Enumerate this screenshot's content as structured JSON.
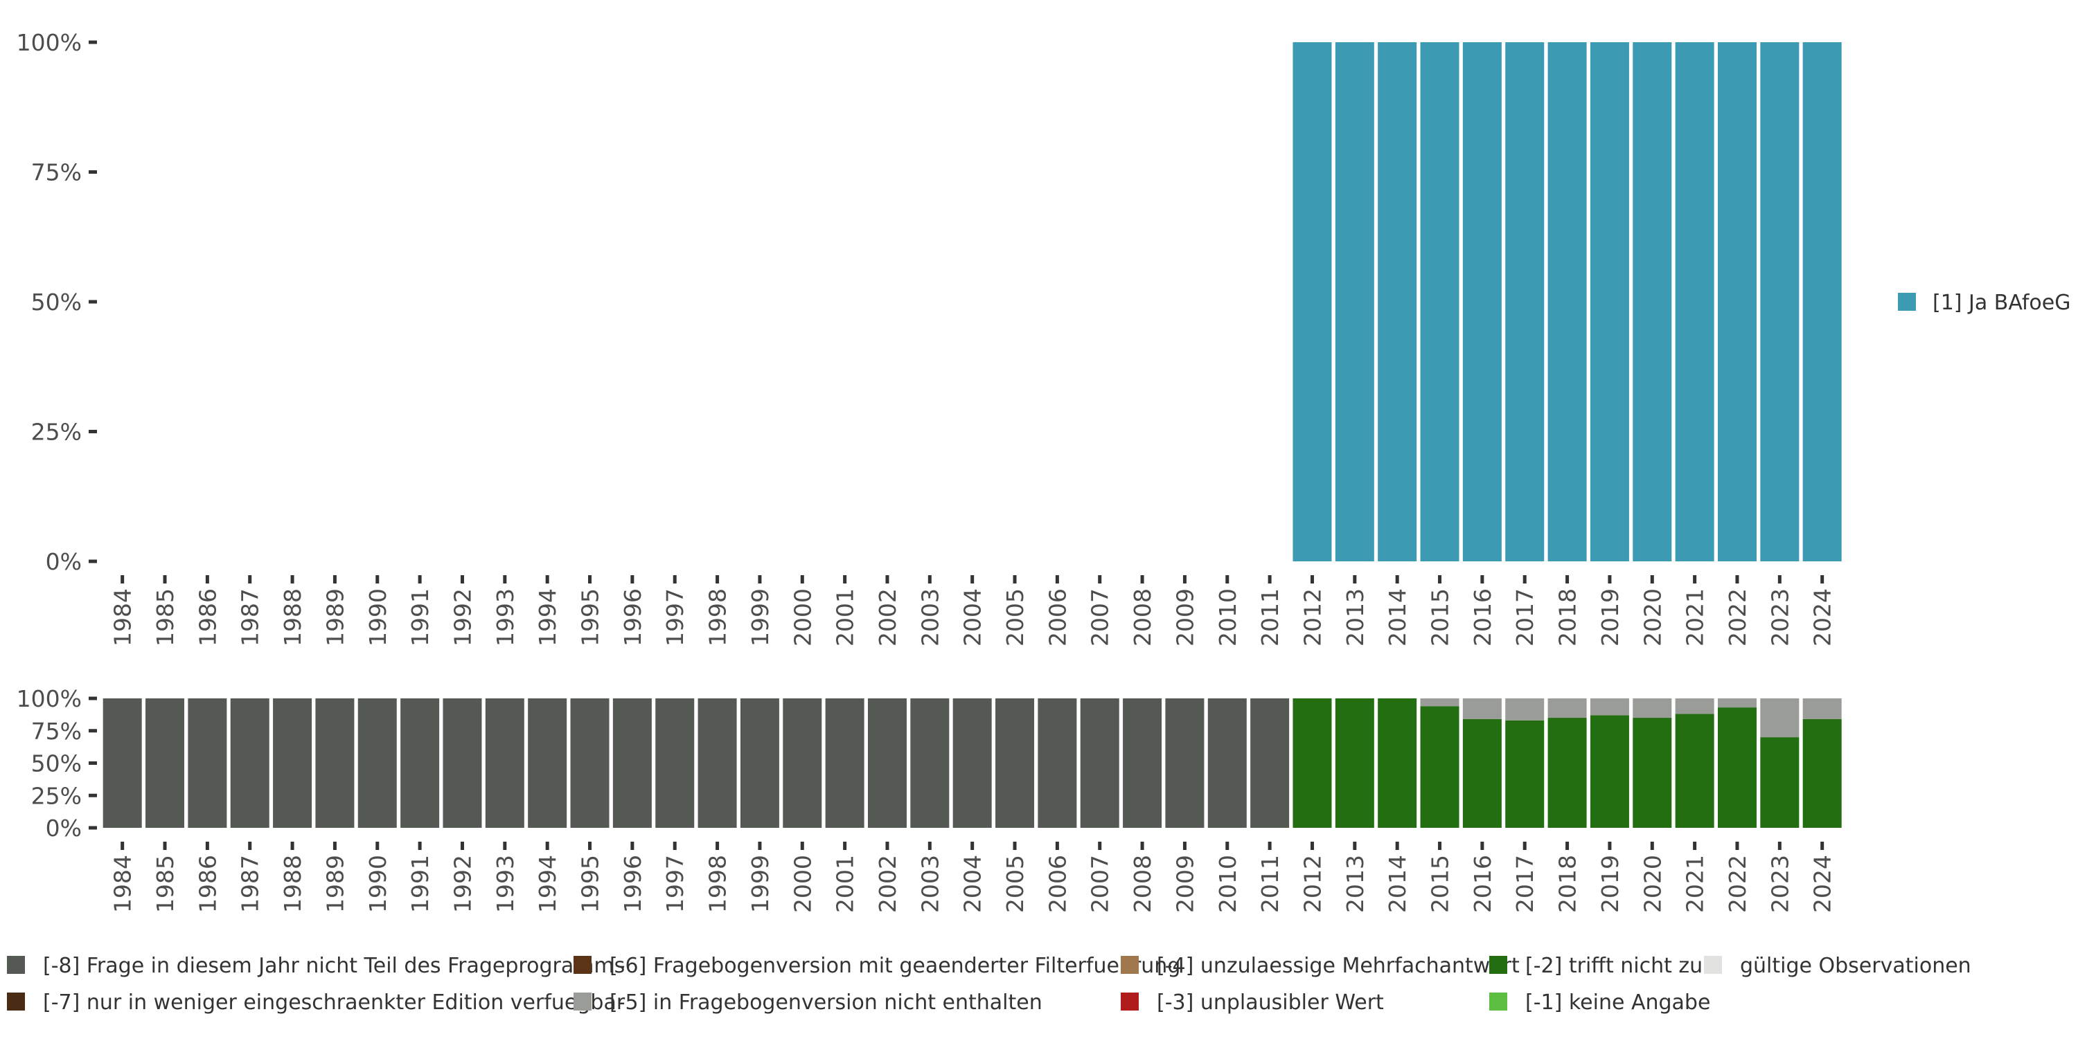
{
  "chart_data": [
    {
      "type": "bar",
      "stacked": true,
      "categories": [
        "1984",
        "1985",
        "1986",
        "1987",
        "1988",
        "1989",
        "1990",
        "1991",
        "1992",
        "1993",
        "1994",
        "1995",
        "1996",
        "1997",
        "1998",
        "1999",
        "2000",
        "2001",
        "2002",
        "2003",
        "2004",
        "2005",
        "2006",
        "2007",
        "2008",
        "2009",
        "2010",
        "2011",
        "2012",
        "2013",
        "2014",
        "2015",
        "2016",
        "2017",
        "2018",
        "2019",
        "2020",
        "2021",
        "2022",
        "2023",
        "2024"
      ],
      "ylim": [
        0,
        1
      ],
      "yticks": [
        0,
        0.25,
        0.5,
        0.75,
        1
      ],
      "ytick_labels": [
        "0%",
        "25%",
        "50%",
        "75%",
        "100%"
      ],
      "grid": false,
      "legend_position": "right",
      "series": [
        {
          "name": "[1] Ja BAfoeG",
          "color": "#3c9ab2",
          "values": [
            null,
            null,
            null,
            null,
            null,
            null,
            null,
            null,
            null,
            null,
            null,
            null,
            null,
            null,
            null,
            null,
            null,
            null,
            null,
            null,
            null,
            null,
            null,
            null,
            null,
            null,
            null,
            null,
            1,
            1,
            1,
            1,
            1,
            1,
            1,
            1,
            1,
            1,
            1,
            1,
            1
          ]
        }
      ]
    },
    {
      "type": "bar",
      "stacked": true,
      "categories": [
        "1984",
        "1985",
        "1986",
        "1987",
        "1988",
        "1989",
        "1990",
        "1991",
        "1992",
        "1993",
        "1994",
        "1995",
        "1996",
        "1997",
        "1998",
        "1999",
        "2000",
        "2001",
        "2002",
        "2003",
        "2004",
        "2005",
        "2006",
        "2007",
        "2008",
        "2009",
        "2010",
        "2011",
        "2012",
        "2013",
        "2014",
        "2015",
        "2016",
        "2017",
        "2018",
        "2019",
        "2020",
        "2021",
        "2022",
        "2023",
        "2024"
      ],
      "ylim": [
        0,
        1
      ],
      "yticks": [
        0,
        0.25,
        0.5,
        0.75,
        1
      ],
      "ytick_labels": [
        "0%",
        "25%",
        "50%",
        "75%",
        "100%"
      ],
      "grid": false,
      "legend_position": "bottom",
      "series": [
        {
          "name": "[-8] Frage in diesem Jahr nicht Teil des Frageprogramms",
          "color": "#545a53",
          "values": [
            1,
            1,
            1,
            1,
            1,
            1,
            1,
            1,
            1,
            1,
            1,
            1,
            1,
            1,
            1,
            1,
            1,
            1,
            1,
            1,
            1,
            1,
            1,
            1,
            1,
            1,
            1,
            1,
            0,
            0,
            0,
            0,
            0,
            0,
            0,
            0,
            0,
            0,
            0,
            0,
            0
          ]
        },
        {
          "name": "[-2] trifft nicht zu",
          "color": "#226e11",
          "values": [
            0,
            0,
            0,
            0,
            0,
            0,
            0,
            0,
            0,
            0,
            0,
            0,
            0,
            0,
            0,
            0,
            0,
            0,
            0,
            0,
            0,
            0,
            0,
            0,
            0,
            0,
            0,
            0,
            1,
            1,
            1,
            0.94,
            0.84,
            0.83,
            0.85,
            0.87,
            0.85,
            0.88,
            0.93,
            0.7,
            0.84
          ]
        },
        {
          "name": "[-5] in Fragebogenversion nicht enthalten",
          "color": "#9a9c98",
          "values": [
            0,
            0,
            0,
            0,
            0,
            0,
            0,
            0,
            0,
            0,
            0,
            0,
            0,
            0,
            0,
            0,
            0,
            0,
            0,
            0,
            0,
            0,
            0,
            0,
            0,
            0,
            0,
            0,
            0,
            0,
            0,
            0.06,
            0.16,
            0.17,
            0.15,
            0.13,
            0.15,
            0.12,
            0.07,
            0.3,
            0.16
          ]
        }
      ]
    }
  ],
  "legend": {
    "items": [
      {
        "label": "[-8] Frage in diesem Jahr nicht Teil des Frageprogramms",
        "color": "#545a53"
      },
      {
        "label": "[-7] nur in weniger eingeschraenkter Edition verfuegbar",
        "color": "#4a2c14"
      },
      {
        "label": "[-6] Fragebogenversion mit geaenderter Filterfuehrung",
        "color": "#5b3418"
      },
      {
        "label": "[-5] in Fragebogenversion nicht enthalten",
        "color": "#9a9c98"
      },
      {
        "label": "[-4] unzulaessige Mehrfachantwort",
        "color": "#a0784d"
      },
      {
        "label": "[-3] unplausibler Wert",
        "color": "#b01b1b"
      },
      {
        "label": "[-2] trifft nicht zu",
        "color": "#226e11"
      },
      {
        "label": "[-1] keine Angabe",
        "color": "#5cbf42"
      },
      {
        "label": "gültige Observationen",
        "color": "#e2e3e0"
      }
    ]
  }
}
